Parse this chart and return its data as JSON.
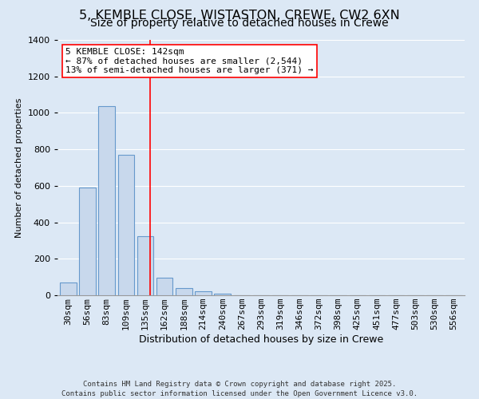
{
  "title": "5, KEMBLE CLOSE, WISTASTON, CREWE, CW2 6XN",
  "subtitle": "Size of property relative to detached houses in Crewe",
  "xlabel": "Distribution of detached houses by size in Crewe",
  "ylabel": "Number of detached properties",
  "bar_labels": [
    "30sqm",
    "56sqm",
    "83sqm",
    "109sqm",
    "135sqm",
    "162sqm",
    "188sqm",
    "214sqm",
    "240sqm",
    "267sqm",
    "293sqm",
    "319sqm",
    "346sqm",
    "372sqm",
    "398sqm",
    "425sqm",
    "451sqm",
    "477sqm",
    "503sqm",
    "530sqm",
    "556sqm"
  ],
  "bar_values": [
    68,
    590,
    1035,
    770,
    325,
    95,
    40,
    20,
    8,
    2,
    0,
    0,
    0,
    0,
    0,
    0,
    0,
    0,
    0,
    0,
    0
  ],
  "bar_color": "#c8d8ec",
  "bar_edge_color": "#6699cc",
  "vline_color": "red",
  "annotation_title": "5 KEMBLE CLOSE: 142sqm",
  "annotation_line1": "← 87% of detached houses are smaller (2,544)",
  "annotation_line2": "13% of semi-detached houses are larger (371) →",
  "annotation_box_facecolor": "white",
  "annotation_box_edgecolor": "red",
  "ylim": [
    0,
    1400
  ],
  "yticks": [
    0,
    200,
    400,
    600,
    800,
    1000,
    1200,
    1400
  ],
  "bg_color": "#dce8f5",
  "grid_color": "white",
  "footer1": "Contains HM Land Registry data © Crown copyright and database right 2025.",
  "footer2": "Contains public sector information licensed under the Open Government Licence v3.0.",
  "title_fontsize": 11.5,
  "subtitle_fontsize": 10,
  "ylabel_fontsize": 8,
  "xlabel_fontsize": 9,
  "tick_fontsize": 8,
  "annot_fontsize": 8
}
